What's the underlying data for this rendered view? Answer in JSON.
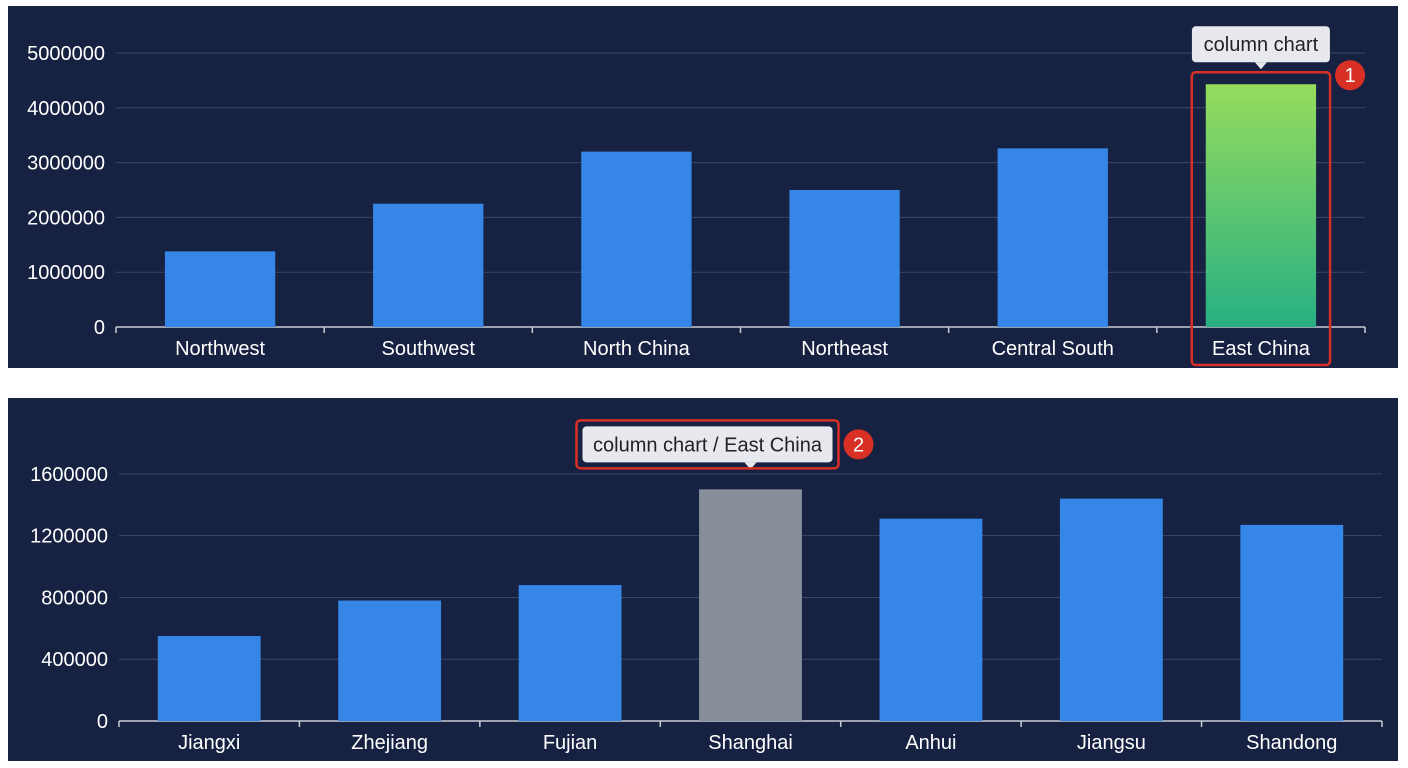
{
  "chart_data": [
    {
      "type": "bar",
      "categories": [
        "Northwest",
        "Southwest",
        "North China",
        "Northeast",
        "Central South",
        "East China"
      ],
      "values": [
        1380000,
        2250000,
        3200000,
        2500000,
        3260000,
        4430000
      ],
      "ylim": [
        0,
        5000000
      ],
      "yticks": [
        "0",
        "1000000",
        "2000000",
        "3000000",
        "4000000",
        "5000000"
      ],
      "grid": true,
      "highlighted": "East China",
      "tooltip": "column chart",
      "annotation_badge": "1",
      "colors": {
        "bar": "#3586e6",
        "highlight_top": "#95dc5c",
        "highlight_bottom": "#27b083",
        "annotation": "#d93025"
      }
    },
    {
      "type": "bar",
      "categories": [
        "Jiangxi",
        "Zhejiang",
        "Fujian",
        "Shanghai",
        "Anhui",
        "Jiangsu",
        "Shandong"
      ],
      "values": [
        550000,
        780000,
        880000,
        1500000,
        1310000,
        1440000,
        1270000
      ],
      "ylim": [
        0,
        1800000
      ],
      "yticks": [
        "0",
        "400000",
        "800000",
        "1200000",
        "1600000"
      ],
      "grid": true,
      "highlighted": "Shanghai",
      "tooltip": "column chart / East China",
      "annotation_badge": "2",
      "colors": {
        "bar": "#3586e6",
        "highlight": "#868e99",
        "annotation": "#d93025"
      }
    }
  ]
}
